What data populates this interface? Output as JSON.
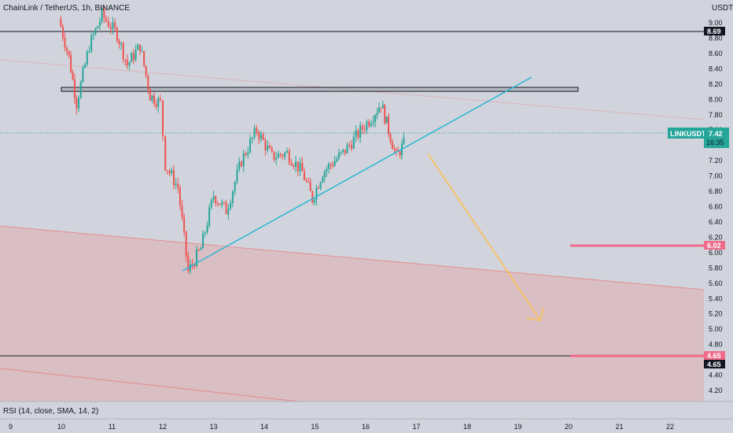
{
  "header": {
    "symbol_title": "ChainLink / TetherUS, 1h, BINANCE",
    "currency": "USDT"
  },
  "indicator": {
    "label": "RSI (14, close, SMA, 14, 2)"
  },
  "price_tag": {
    "symbol": "LINKUSDT",
    "price": "7.42",
    "countdown": "16:35"
  },
  "colors": {
    "background": "#d1d4dc",
    "up": "#26a69a",
    "down": "#ef5350",
    "trendline": "#29b6d6",
    "arrow": "#f6c26b",
    "level_pink": "#ef6b8a",
    "zone_fill": "#e8a0a0"
  },
  "chart_data": {
    "type": "candlestick",
    "symbol": "ChainLink / TetherUS",
    "interval": "1h",
    "exchange": "BINANCE",
    "ylim": [
      4.05,
      9.2
    ],
    "y_ticks": [
      4.2,
      4.4,
      4.6,
      4.8,
      5.0,
      5.2,
      5.4,
      5.6,
      5.8,
      6.0,
      6.2,
      6.4,
      6.6,
      6.8,
      7.0,
      7.2,
      7.4,
      7.6,
      7.8,
      8.0,
      8.2,
      8.4,
      8.6,
      8.8,
      9.0
    ],
    "x_ticks": [
      "9",
      "10",
      "11",
      "12",
      "13",
      "14",
      "15",
      "16",
      "17",
      "18",
      "19",
      "20",
      "21",
      "22"
    ],
    "price_path_points": [
      {
        "x": 9.95,
        "y": 9.05
      },
      {
        "x": 10.15,
        "y": 8.55
      },
      {
        "x": 10.3,
        "y": 7.95
      },
      {
        "x": 10.55,
        "y": 8.7
      },
      {
        "x": 10.8,
        "y": 9.1
      },
      {
        "x": 11.1,
        "y": 8.85
      },
      {
        "x": 11.3,
        "y": 8.45
      },
      {
        "x": 11.55,
        "y": 8.7
      },
      {
        "x": 11.75,
        "y": 8.05
      },
      {
        "x": 11.95,
        "y": 7.95
      },
      {
        "x": 12.05,
        "y": 7.15
      },
      {
        "x": 12.3,
        "y": 6.85
      },
      {
        "x": 12.5,
        "y": 5.75
      },
      {
        "x": 12.75,
        "y": 6.05
      },
      {
        "x": 13.0,
        "y": 6.75
      },
      {
        "x": 13.25,
        "y": 6.55
      },
      {
        "x": 13.55,
        "y": 7.2
      },
      {
        "x": 13.85,
        "y": 7.6
      },
      {
        "x": 14.15,
        "y": 7.25
      },
      {
        "x": 14.45,
        "y": 7.3
      },
      {
        "x": 14.75,
        "y": 7.05
      },
      {
        "x": 14.95,
        "y": 6.7
      },
      {
        "x": 15.15,
        "y": 7.05
      },
      {
        "x": 15.55,
        "y": 7.3
      },
      {
        "x": 15.85,
        "y": 7.55
      },
      {
        "x": 16.15,
        "y": 7.8
      },
      {
        "x": 16.3,
        "y": 7.95
      },
      {
        "x": 16.45,
        "y": 7.6
      },
      {
        "x": 16.6,
        "y": 7.25
      },
      {
        "x": 16.75,
        "y": 7.42
      }
    ],
    "last_price": 7.42,
    "horizontal_levels": [
      8.69,
      4.65
    ],
    "resistance_box": [
      7.95,
      8.0
    ],
    "marked_levels": [
      6.02,
      4.65
    ],
    "trendline": [
      {
        "x": 12.4,
        "y": 5.7
      },
      {
        "x": 19.25,
        "y": 8.1
      }
    ],
    "projection_arrow": [
      {
        "x": 17.25,
        "y": 7.15
      },
      {
        "x": 19.4,
        "y": 5.03
      }
    ],
    "grid": false,
    "legend": "none"
  }
}
